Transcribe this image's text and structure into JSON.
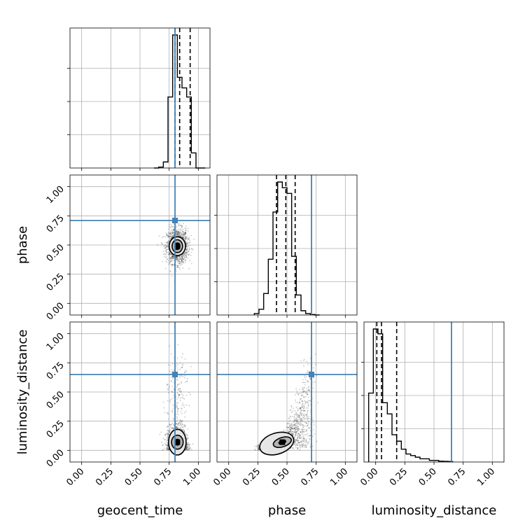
{
  "chart_data": {
    "type": "corner",
    "parameters": [
      "geocent_time",
      "phase",
      "luminosity_distance"
    ],
    "axis_range": [
      -0.1,
      1.1
    ],
    "tick_values": [
      0.0,
      0.25,
      0.5,
      0.75,
      1.0
    ],
    "tick_labels": [
      "0.00",
      "0.25",
      "0.50",
      "0.75",
      "1.00"
    ],
    "grid": true,
    "truths": {
      "geocent_time": 0.8,
      "phase": 0.71,
      "luminosity_distance": 0.65
    },
    "truth_color": "#4682b4",
    "histograms": {
      "geocent_time": {
        "bin_edges": [
          0.62,
          0.66,
          0.7,
          0.74,
          0.78,
          0.82,
          0.86,
          0.9,
          0.94,
          0.98,
          1.02,
          1.06
        ],
        "counts": [
          0,
          0.006,
          0.04,
          0.47,
          0.88,
          0.6,
          0.53,
          0.47,
          0.1,
          0,
          0
        ],
        "quantiles": [
          0.8,
          0.84,
          0.93
        ]
      },
      "phase": {
        "bin_edges": [
          0.22,
          0.26,
          0.3,
          0.34,
          0.38,
          0.42,
          0.46,
          0.5,
          0.54,
          0.58,
          0.62,
          0.66,
          0.7,
          0.74,
          0.78
        ],
        "counts": [
          0.01,
          0.04,
          0.15,
          0.39,
          0.72,
          0.93,
          0.89,
          0.85,
          0.41,
          0.14,
          0.03,
          0.01,
          0.003,
          0
        ],
        "quantiles": [
          0.41,
          0.49,
          0.57
        ]
      },
      "luminosity_distance": {
        "bin_edges": [
          -0.06,
          -0.02,
          0.02,
          0.06,
          0.1,
          0.14,
          0.18,
          0.22,
          0.26,
          0.3,
          0.34,
          0.38,
          0.42,
          0.46,
          0.5,
          0.54,
          0.58,
          0.62,
          0.66
        ],
        "counts": [
          0.43,
          0.83,
          0.8,
          0.37,
          0.3,
          0.17,
          0.13,
          0.08,
          0.05,
          0.04,
          0.03,
          0.02,
          0.02,
          0.01,
          0.01,
          0.005,
          0.004,
          0.003
        ],
        "quantiles": [
          0.01,
          0.05,
          0.18
        ]
      }
    },
    "samples_2d": {
      "phase_vs_geocent_time": {
        "center": [
          0.82,
          0.49
        ],
        "contour_radii": [
          [
            0.07,
            0.08
          ],
          [
            0.045,
            0.055
          ],
          [
            0.022,
            0.028
          ]
        ]
      },
      "luminosity_distance_vs_geocent_time": {
        "center": [
          0.82,
          0.07
        ],
        "contour_radii": [
          [
            0.075,
            0.11
          ],
          [
            0.05,
            0.06
          ],
          [
            0.02,
            0.025
          ]
        ]
      },
      "luminosity_distance_vs_phase": {
        "center": [
          0.46,
          0.07
        ],
        "contour_radii": [
          [
            0.15,
            0.09
          ],
          [
            0.08,
            0.04
          ],
          [
            0.03,
            0.015
          ]
        ]
      }
    }
  }
}
